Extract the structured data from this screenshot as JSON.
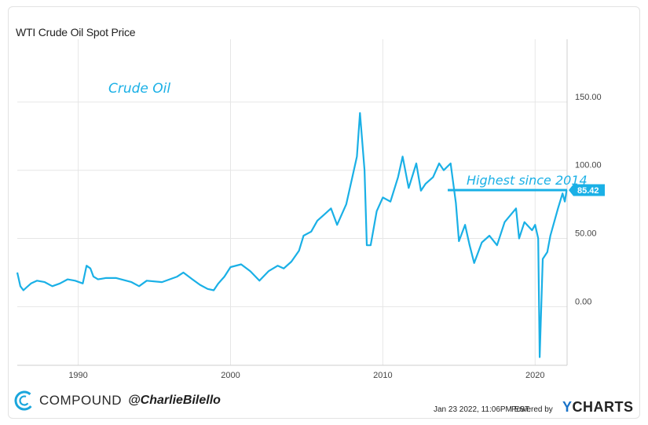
{
  "title": "WTI Crude Oil Spot Price",
  "annotations": {
    "series_label": "Crude Oil",
    "highest_note": "Highest since 2014",
    "last_value_badge": "85.42"
  },
  "footer": {
    "brand": "COMPOUND",
    "handle": "@CharlieBilello",
    "timestamp": "Jan 23 2022, 11:06PM EST.",
    "powered_by": "Powered by",
    "ycharts_y": "Y",
    "ycharts_rest": "CHARTS"
  },
  "colors": {
    "line": "#1ab0e6",
    "badge": "#1ab0e6",
    "grid": "#e6e6e6"
  },
  "chart_data": {
    "type": "line",
    "title": "WTI Crude Oil Spot Price",
    "xlabel": "",
    "ylabel": "",
    "x_ticks": [
      "1990",
      "2000",
      "2010",
      "2020"
    ],
    "y_ticks": [
      "0.00",
      "50.00",
      "100.00",
      "150.00"
    ],
    "xlim": [
      1986.0,
      2022.1
    ],
    "ylim": [
      -43,
      196
    ],
    "grid": true,
    "series": [
      {
        "x": [
          1986.0,
          1986.2,
          1986.4,
          1986.6,
          1986.9,
          1987.3,
          1987.8,
          1988.3,
          1988.8,
          1989.3,
          1989.8,
          1990.3,
          1990.55,
          1990.8,
          1991.0,
          1991.3,
          1991.8,
          1992.5,
          1993.5,
          1994.0,
          1994.5,
          1995.5,
          1996.5,
          1996.9,
          1997.5,
          1998.0,
          1998.5,
          1998.9,
          1999.2,
          1999.6,
          2000.0,
          2000.7,
          2001.3,
          2001.9,
          2002.5,
          2003.1,
          2003.5,
          2004.0,
          2004.5,
          2004.8,
          2005.3,
          2005.7,
          2006.2,
          2006.6,
          2007.0,
          2007.6,
          2008.0,
          2008.3,
          2008.5,
          2008.8,
          2008.95,
          2009.2,
          2009.6,
          2010.0,
          2010.5,
          2011.0,
          2011.3,
          2011.7,
          2012.2,
          2012.5,
          2012.8,
          2013.3,
          2013.7,
          2014.0,
          2014.45,
          2014.8,
          2015.0,
          2015.4,
          2015.7,
          2016.0,
          2016.5,
          2017.0,
          2017.5,
          2018.0,
          2018.75,
          2018.95,
          2019.3,
          2019.8,
          2020.0,
          2020.2,
          2020.3,
          2020.5,
          2020.8,
          2021.0,
          2021.5,
          2021.8,
          2021.95,
          2022.07
        ],
        "y": [
          25,
          15,
          12,
          14,
          17,
          19,
          18,
          15,
          17,
          20,
          19,
          17,
          30,
          28,
          22,
          20,
          21,
          21,
          18,
          15,
          19,
          18,
          22,
          25,
          20,
          16,
          13,
          12,
          17,
          22,
          29,
          31,
          26,
          19,
          26,
          30,
          28,
          33,
          41,
          52,
          55,
          63,
          68,
          72,
          60,
          75,
          95,
          110,
          142,
          100,
          45,
          45,
          70,
          80,
          77,
          95,
          110,
          87,
          105,
          85,
          90,
          95,
          105,
          100,
          105,
          76,
          48,
          60,
          45,
          32,
          47,
          52,
          45,
          62,
          72,
          50,
          62,
          56,
          60,
          50,
          -37,
          35,
          40,
          52,
          72,
          83,
          77,
          85.42
        ]
      }
    ]
  }
}
